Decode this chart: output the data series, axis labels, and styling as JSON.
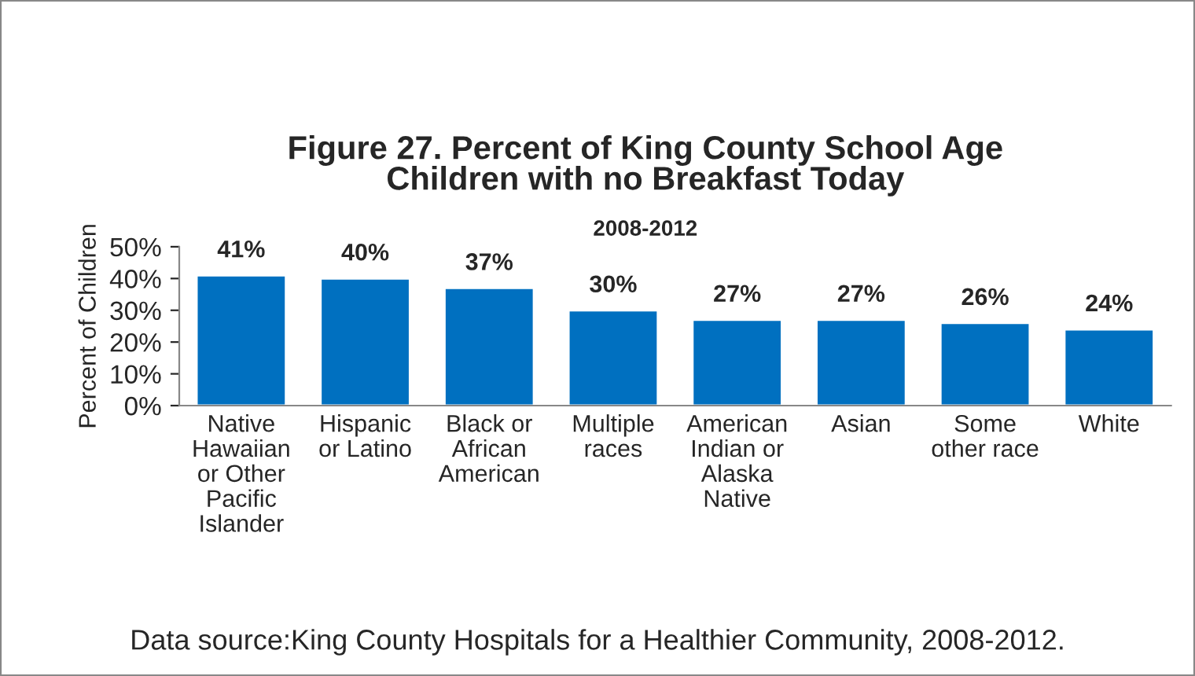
{
  "chart_data": {
    "type": "bar",
    "title": "Figure 27. Percent of King County School Age\nChildren with no Breakfast Today",
    "subtitle": "2008-2012",
    "ylabel": "Percent of Children",
    "categories": [
      "Native\nHawaiian\nor Other\nPacific\nIslander",
      "Hispanic\nor Latino",
      "Black or\nAfrican\nAmerican",
      "Multiple\nraces",
      "American\nIndian or\nAlaska\nNative",
      "Asian",
      "Some\nother race",
      "White"
    ],
    "values": [
      41,
      40,
      37,
      30,
      27,
      27,
      26,
      24
    ],
    "value_labels": [
      "41%",
      "40%",
      "37%",
      "30%",
      "27%",
      "27%",
      "26%",
      "24%"
    ],
    "color": "#0070c0",
    "ylim": [
      0,
      50
    ],
    "yticks": [
      {
        "value": 0,
        "label": "0%"
      },
      {
        "value": 10,
        "label": "10%"
      },
      {
        "value": 20,
        "label": "20%"
      },
      {
        "value": 30,
        "label": "30%"
      },
      {
        "value": 40,
        "label": "40%"
      },
      {
        "value": 50,
        "label": "50%"
      }
    ],
    "grid": false,
    "legend": false,
    "annotations": [
      "Data source:King County Hospitals for a Healthier Community, 2008-2012."
    ]
  }
}
